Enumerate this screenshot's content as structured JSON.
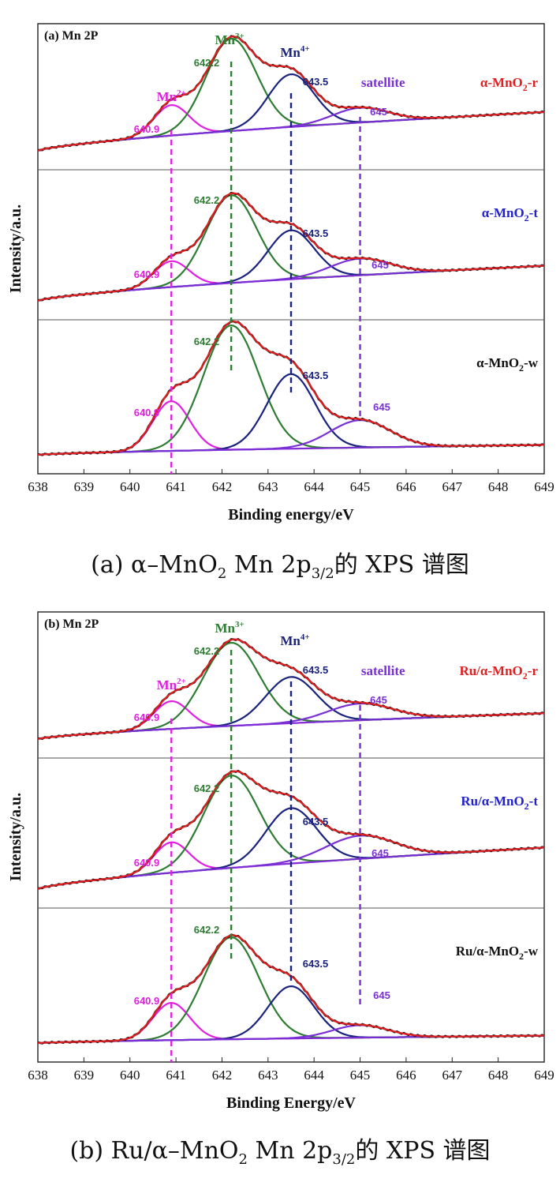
{
  "chart_data": [
    {
      "type": "line",
      "panel_label": "(a)",
      "title": "Mn 2P",
      "xlabel": "Binding energy/eV",
      "ylabel": "Intensity/a.u.",
      "xlim": [
        638,
        649
      ],
      "xticks": [
        "638",
        "639",
        "640",
        "641",
        "642",
        "643",
        "644",
        "645",
        "646",
        "647",
        "648",
        "649"
      ],
      "species_labels": {
        "mn2": "Mn2+",
        "mn3": "Mn3+",
        "mn4": "Mn4+",
        "satellite": "satellite"
      },
      "peak_positions": [
        640.9,
        642.2,
        643.5,
        645
      ],
      "peak_labels": [
        "640.9",
        "642.2",
        "643.5",
        "645"
      ],
      "colors": {
        "mn2": "#e020e0",
        "mn3": "#2e7d32",
        "mn4": "#1a237e",
        "satellite": "#7b2fd6",
        "envelope": "#e02020",
        "raw": "#111111",
        "label_red": "#e02020",
        "label_blue": "#2222cc",
        "label_black": "#111111"
      },
      "baseline_x": [
        638,
        649
      ],
      "subplots": [
        {
          "sample": "α-MnO2-r",
          "sample_main": "α-MnO",
          "sample_sub": "2",
          "sample_suffix": "-r",
          "label_color": "label_red",
          "baseline": [
            0.0,
            0.42
          ],
          "peaks": [
            {
              "species": "mn2",
              "center": 640.9,
              "height": 0.33,
              "width": 0.38
            },
            {
              "species": "mn3",
              "center": 642.2,
              "height": 1.0,
              "width": 0.55
            },
            {
              "species": "mn4",
              "center": 643.5,
              "height": 0.57,
              "width": 0.5
            },
            {
              "species": "satellite",
              "center": 645.0,
              "height": 0.16,
              "width": 0.6
            }
          ]
        },
        {
          "sample": "α-MnO2-t",
          "sample_main": "α-MnO",
          "sample_sub": "2",
          "sample_suffix": "-t",
          "label_color": "label_blue",
          "baseline": [
            0.0,
            0.38
          ],
          "peaks": [
            {
              "species": "mn2",
              "center": 640.9,
              "height": 0.28,
              "width": 0.38
            },
            {
              "species": "mn3",
              "center": 642.2,
              "height": 0.95,
              "width": 0.55
            },
            {
              "species": "mn4",
              "center": 643.5,
              "height": 0.53,
              "width": 0.5
            },
            {
              "species": "satellite",
              "center": 645.0,
              "height": 0.18,
              "width": 0.65
            }
          ]
        },
        {
          "sample": "α-MnO2-w",
          "sample_main": "α-MnO",
          "sample_sub": "2",
          "sample_suffix": "-w",
          "label_color": "label_black",
          "baseline": [
            0.0,
            0.08
          ],
          "peaks": [
            {
              "species": "mn2",
              "center": 640.9,
              "height": 0.4,
              "width": 0.4
            },
            {
              "species": "mn3",
              "center": 642.2,
              "height": 1.0,
              "width": 0.6
            },
            {
              "species": "mn4",
              "center": 643.5,
              "height": 0.6,
              "width": 0.52
            },
            {
              "species": "satellite",
              "center": 645.0,
              "height": 0.22,
              "width": 0.65
            }
          ]
        }
      ]
    },
    {
      "type": "line",
      "panel_label": "(b)",
      "title": "Mn 2P",
      "xlabel": "Binding Energy/eV",
      "ylabel": "Intensity/a.u.",
      "xlim": [
        638,
        649
      ],
      "xticks": [
        "638",
        "639",
        "640",
        "641",
        "642",
        "643",
        "644",
        "645",
        "646",
        "647",
        "648",
        "649"
      ],
      "species_labels": {
        "mn2": "Mn2+",
        "mn3": "Mn3+",
        "mn4": "Mn4+",
        "satellite": "satellite"
      },
      "peak_positions": [
        640.9,
        642.2,
        643.5,
        645
      ],
      "peak_labels": [
        "640.9",
        "642.2",
        "643.5",
        "645"
      ],
      "colors": {
        "mn2": "#e020e0",
        "mn3": "#2e7d32",
        "mn4": "#1a237e",
        "satellite": "#7b2fd6",
        "envelope": "#e02020",
        "raw": "#111111",
        "label_red": "#e02020",
        "label_blue": "#2222cc",
        "label_black": "#111111"
      },
      "baseline_x": [
        638,
        649
      ],
      "subplots": [
        {
          "sample": "Ru/α-MnO2-r",
          "sample_main": "Ru/α-MnO",
          "sample_sub": "2",
          "sample_suffix": "-r",
          "label_color": "label_red",
          "baseline": [
            0.0,
            0.28
          ],
          "peaks": [
            {
              "species": "mn2",
              "center": 640.9,
              "height": 0.3,
              "width": 0.38
            },
            {
              "species": "mn3",
              "center": 642.2,
              "height": 0.9,
              "width": 0.6
            },
            {
              "species": "mn4",
              "center": 643.5,
              "height": 0.5,
              "width": 0.55
            },
            {
              "species": "satellite",
              "center": 645.0,
              "height": 0.18,
              "width": 0.7
            }
          ]
        },
        {
          "sample": "Ru/α-MnO2-t",
          "sample_main": "Ru/α-MnO",
          "sample_sub": "2",
          "sample_suffix": "-t",
          "label_color": "label_blue",
          "baseline": [
            0.0,
            0.45
          ],
          "peaks": [
            {
              "species": "mn2",
              "center": 640.9,
              "height": 0.33,
              "width": 0.38
            },
            {
              "species": "mn3",
              "center": 642.2,
              "height": 1.0,
              "width": 0.6
            },
            {
              "species": "mn4",
              "center": 643.5,
              "height": 0.6,
              "width": 0.55
            },
            {
              "species": "satellite",
              "center": 645.0,
              "height": 0.25,
              "width": 0.75
            }
          ]
        },
        {
          "sample": "Ru/α-MnO2-w",
          "sample_main": "Ru/α-MnO",
          "sample_sub": "2",
          "sample_suffix": "-w",
          "label_color": "label_black",
          "baseline": [
            0.0,
            0.06
          ],
          "peaks": [
            {
              "species": "mn2",
              "center": 640.9,
              "height": 0.3,
              "width": 0.4
            },
            {
              "species": "mn3",
              "center": 642.2,
              "height": 0.82,
              "width": 0.6
            },
            {
              "species": "mn4",
              "center": 643.5,
              "height": 0.42,
              "width": 0.5
            },
            {
              "species": "satellite",
              "center": 645.0,
              "height": 0.1,
              "width": 0.6
            }
          ]
        }
      ]
    }
  ],
  "captions": {
    "a": {
      "prefix": "(a) α–MnO",
      "sub1": "2",
      "middle": " Mn 2p",
      "sub2": "3/2",
      "suffix": "的 XPS 谱图"
    },
    "b": {
      "prefix": "(b) Ru/α–MnO",
      "sub1": "2",
      "middle": " Mn 2p",
      "sub2": "3/2",
      "suffix": "的 XPS 谱图"
    }
  }
}
